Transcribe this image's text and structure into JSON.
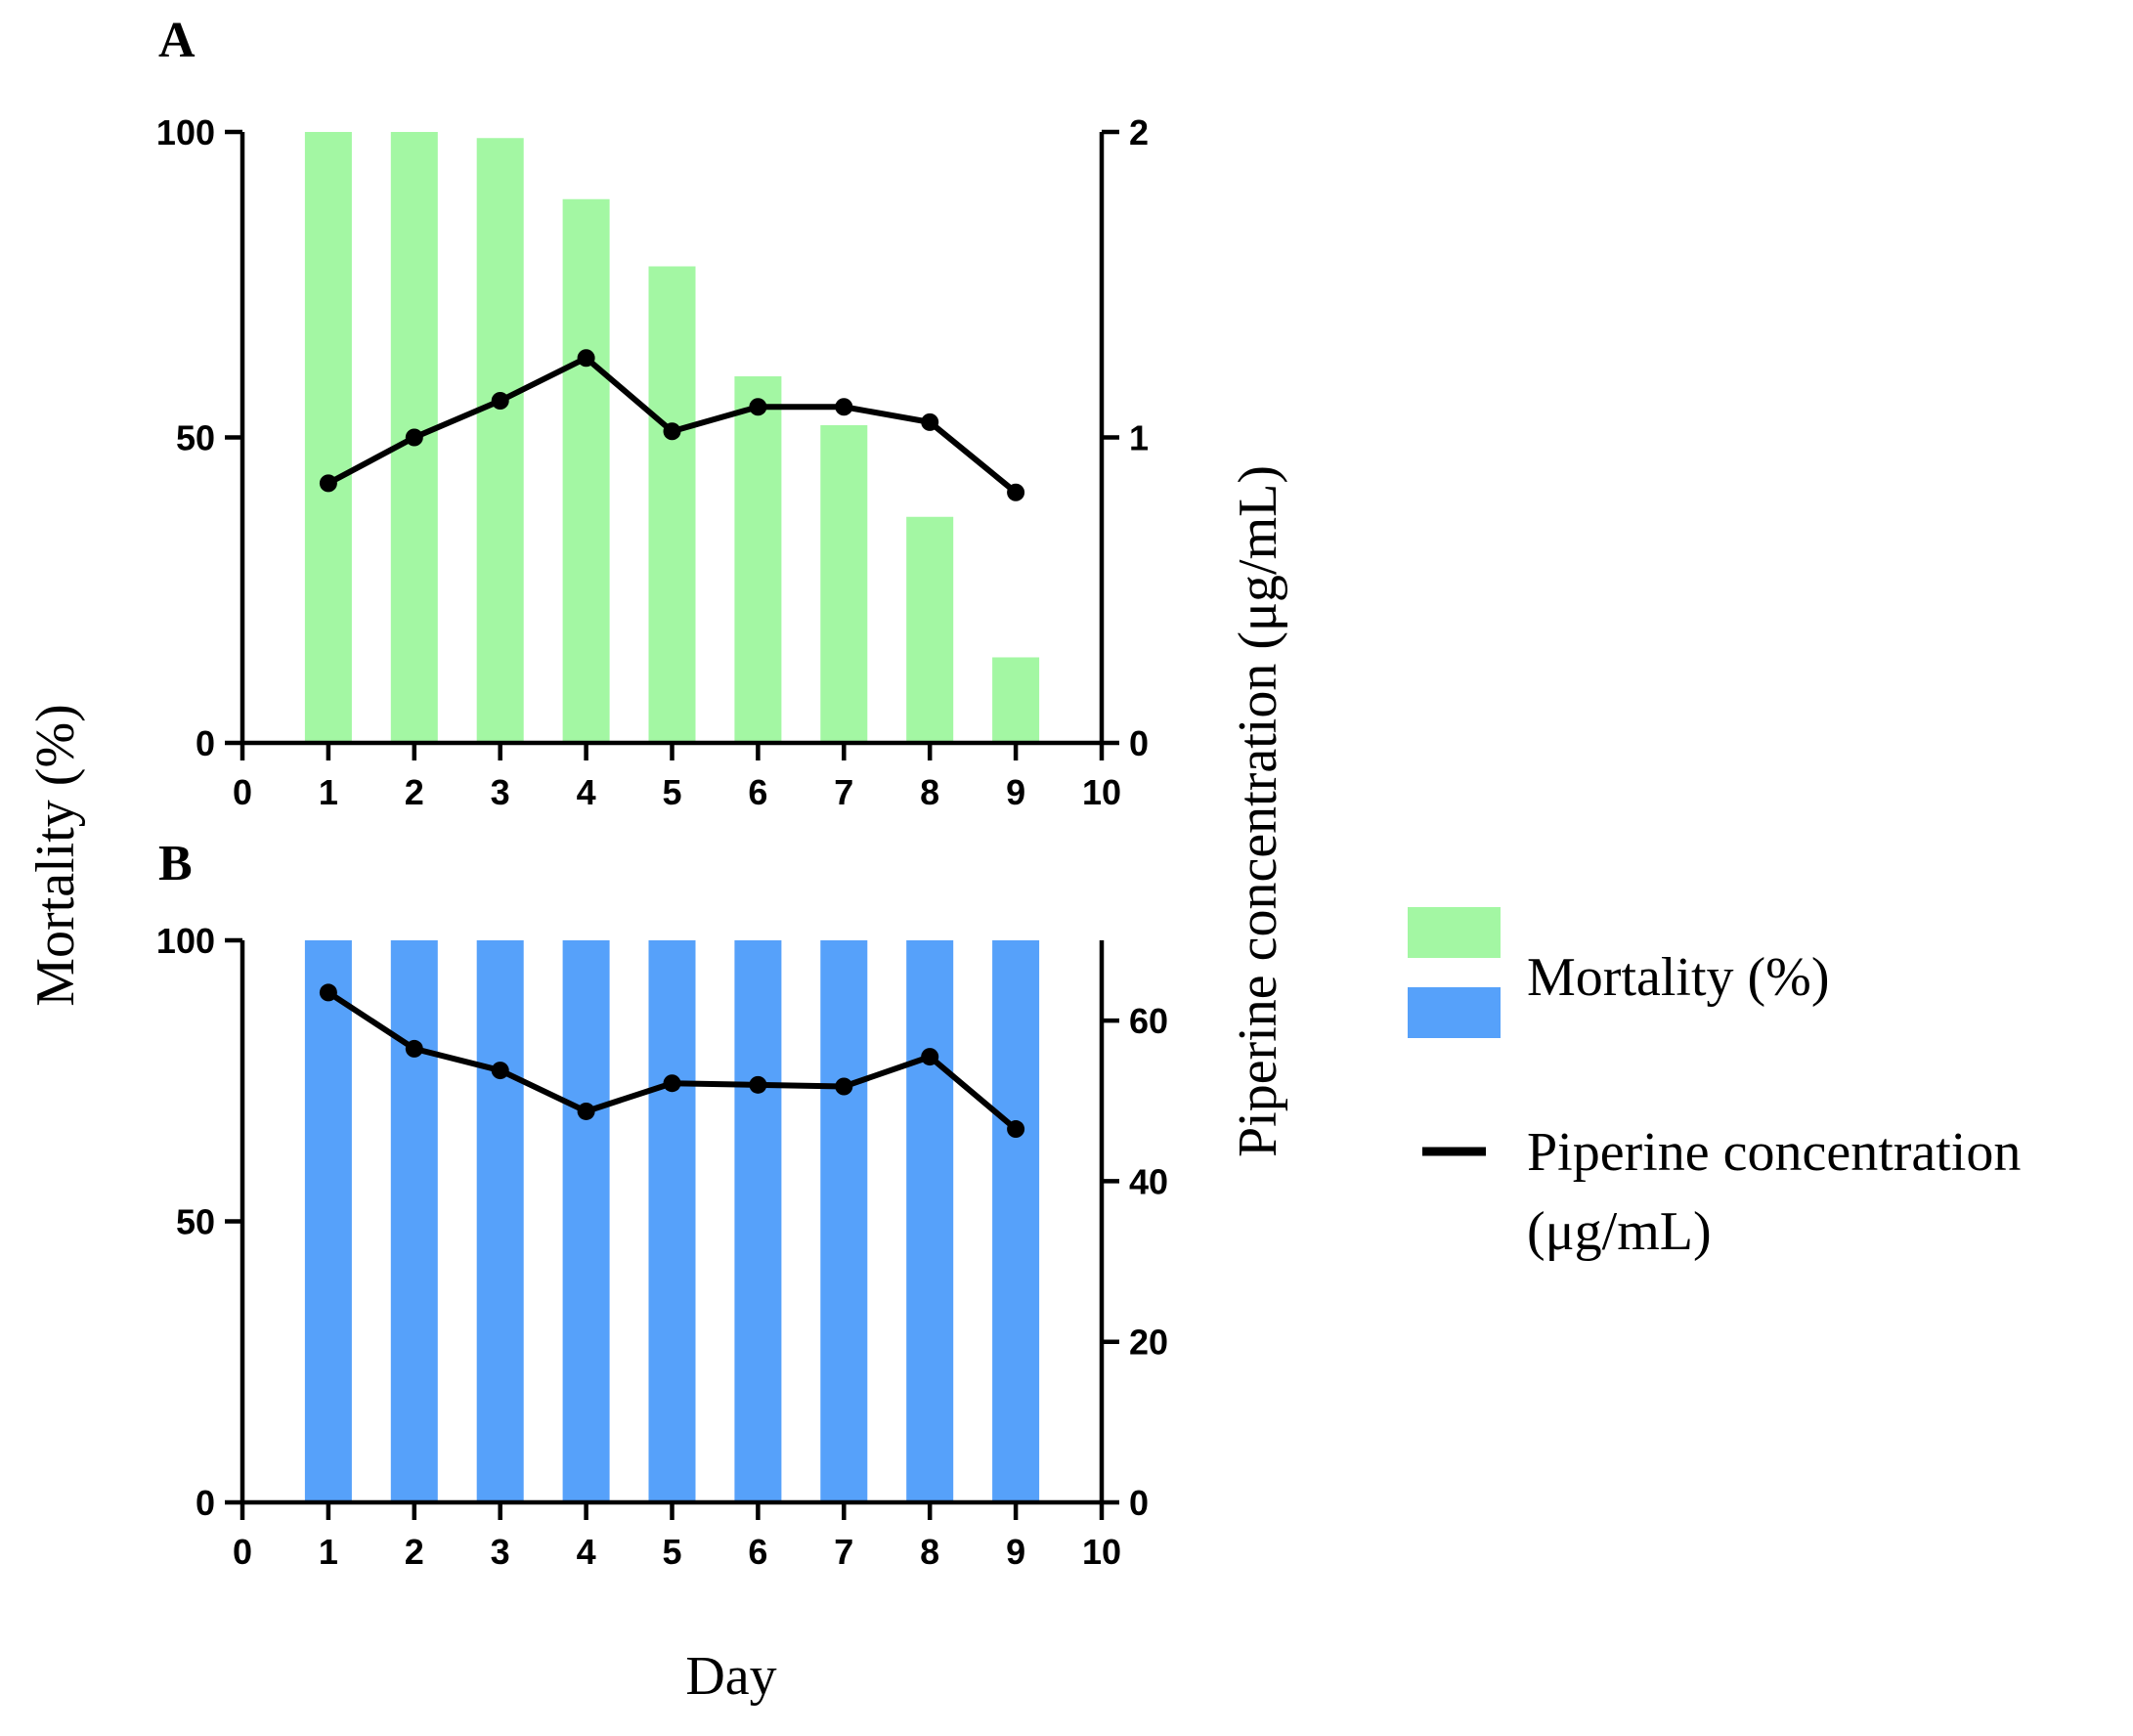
{
  "chart_data": [
    {
      "panel": "A",
      "type": "bar+line",
      "x": [
        1,
        2,
        3,
        4,
        5,
        6,
        7,
        8,
        9
      ],
      "xlim": [
        0,
        10
      ],
      "xticks": [
        "0",
        "1",
        "2",
        "3",
        "4",
        "5",
        "6",
        "7",
        "8",
        "9",
        "10"
      ],
      "bar_series": {
        "name": "Mortality (%)",
        "color": "#a3f7a3",
        "values": [
          100,
          100,
          99,
          89,
          78,
          60,
          52,
          37,
          14
        ]
      },
      "line_series": {
        "name": "Piperine concentration (μg/mL)",
        "color": "#000000",
        "values": [
          0.85,
          1.0,
          1.12,
          1.26,
          1.02,
          1.1,
          1.1,
          1.05,
          0.82
        ]
      },
      "ylim_left": [
        0,
        100
      ],
      "yticks_left": [
        "0",
        "50",
        "100"
      ],
      "ylim_right": [
        0,
        2
      ],
      "yticks_right": [
        "0",
        "1",
        "2"
      ]
    },
    {
      "panel": "B",
      "type": "bar+line",
      "x": [
        1,
        2,
        3,
        4,
        5,
        6,
        7,
        8,
        9
      ],
      "xlim": [
        0,
        10
      ],
      "xticks": [
        "0",
        "1",
        "2",
        "3",
        "4",
        "5",
        "6",
        "7",
        "8",
        "9",
        "10"
      ],
      "bar_series": {
        "name": "Mortality (%)",
        "color": "#56a1fa",
        "values": [
          100,
          100,
          100,
          100,
          100,
          100,
          100,
          100,
          100
        ]
      },
      "line_series": {
        "name": "Piperine concentration (μg/mL)",
        "color": "#000000",
        "values": [
          63.5,
          56.5,
          53.8,
          48.7,
          52.2,
          52.0,
          51.8,
          55.5,
          46.5
        ]
      },
      "ylim_left": [
        0,
        100
      ],
      "yticks_left": [
        "0",
        "50",
        "100"
      ],
      "ylim_right": [
        0,
        70
      ],
      "yticks_right": [
        "0",
        "20",
        "40",
        "60"
      ]
    }
  ],
  "labels": {
    "panel_a": "A",
    "panel_b": "B",
    "y_left_title": "Mortality (%)",
    "y_right_title": "Piperine concentration (μg/mL)",
    "x_title": "Day"
  },
  "legend": {
    "bar_label": "Mortality (%)",
    "line_label_line1": "Piperine concentration",
    "line_label_line2": "(μg/mL)",
    "colors": [
      "#a3f7a3",
      "#56a1fa"
    ]
  }
}
